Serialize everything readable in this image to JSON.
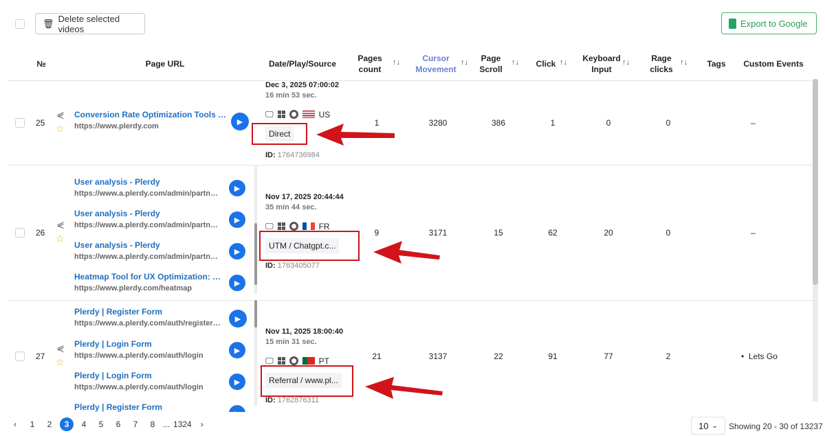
{
  "toolbar": {
    "delete_label": "Delete selected videos",
    "export_label": "Export to Google"
  },
  "columns": {
    "num": "№",
    "page_url": "Page URL",
    "date": "Date/Play/Source",
    "pages_count": "Pages count",
    "cursor": "Cursor Movement",
    "scroll": "Page Scroll",
    "click": "Click",
    "keyboard": "Keyboard Input",
    "rage": "Rage clicks",
    "tags": "Tags",
    "custom": "Custom Events"
  },
  "sort_icon": "sort-arrows-icon",
  "accent_color": "#1a73e8",
  "cursor_header_color": "#6b7fd7",
  "rows": [
    {
      "num": "25",
      "pages": [
        {
          "title": "Conversion Rate Optimization Tools – Plerdy",
          "url": "https://www.plerdy.com"
        }
      ],
      "date": "Dec 3, 2025 07:00:02",
      "duration": "16 min 53 sec.",
      "browser": "chrome",
      "country": "US",
      "source": "Direct",
      "id_label": "ID:",
      "id": "1764736984",
      "pages_count": "1",
      "cursor": "3280",
      "scroll": "386",
      "click": "1",
      "keyboard": "0",
      "rage": "0",
      "tags": "",
      "custom": "–"
    },
    {
      "num": "26",
      "pages": [
        {
          "title": "User analysis - Plerdy",
          "url": "https://www.a.plerdy.com/admin/partners?id"
        },
        {
          "title": "User analysis - Plerdy",
          "url": "https://www.a.plerdy.com/admin/partners?id"
        },
        {
          "title": "User analysis - Plerdy",
          "url": "https://www.a.plerdy.com/admin/partners?id"
        },
        {
          "title": "Heatmap Tool for UX Optimization: Maximize",
          "url": "https://www.plerdy.com/heatmap"
        }
      ],
      "date": "Nov 17, 2025 20:44:44",
      "duration": "35 min 44 sec.",
      "browser": "chrome",
      "country": "FR",
      "source": "UTM / Chatgpt.c...",
      "id_label": "ID:",
      "id": "1763405077",
      "pages_count": "9",
      "cursor": "3171",
      "scroll": "15",
      "click": "62",
      "keyboard": "20",
      "rage": "0",
      "tags": "",
      "custom": "–"
    },
    {
      "num": "27",
      "pages": [
        {
          "title": "Plerdy | Register Form",
          "url": "https://www.a.plerdy.com/auth/register?app"
        },
        {
          "title": "Plerdy | Login Form",
          "url": "https://www.a.plerdy.com/auth/login"
        },
        {
          "title": "Plerdy | Login Form",
          "url": "https://www.a.plerdy.com/auth/login"
        },
        {
          "title": "Plerdy | Register Form",
          "url": ""
        }
      ],
      "date": "Nov 11, 2025 18:00:40",
      "duration": "15 min 31 sec.",
      "browser": "edge",
      "country": "PT",
      "source": "Referral / www.pl...",
      "id_label": "ID:",
      "id": "1762876311",
      "pages_count": "21",
      "cursor": "3137",
      "scroll": "22",
      "click": "91",
      "keyboard": "77",
      "rage": "2",
      "tags": "",
      "custom": "Lets Go"
    }
  ],
  "pagination": {
    "pages": [
      "1",
      "2",
      "3",
      "4",
      "5",
      "6",
      "7",
      "8"
    ],
    "current": "3",
    "ellipsis": "...",
    "last": "1324",
    "per_page": "10",
    "showing": "Showing 20 - 30 of 13237"
  }
}
